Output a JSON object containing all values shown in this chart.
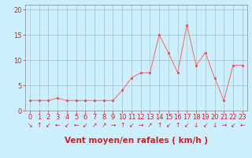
{
  "bg_color": "#cceeff",
  "grid_color": "#aacccc",
  "line_color": "#f07878",
  "marker_color": "#e05555",
  "xlabel": "Vent moyen/en rafales ( km/h )",
  "xlim": [
    -0.5,
    23.5
  ],
  "ylim": [
    0,
    21
  ],
  "yticks": [
    0,
    5,
    10,
    15,
    20
  ],
  "xticks": [
    0,
    1,
    2,
    3,
    4,
    5,
    6,
    7,
    8,
    9,
    10,
    11,
    12,
    13,
    14,
    15,
    16,
    17,
    18,
    19,
    20,
    21,
    22,
    23
  ],
  "x_data": [
    0,
    1,
    2,
    3,
    4,
    5,
    6,
    7,
    8,
    9,
    10,
    11,
    12,
    13,
    14,
    15,
    16,
    17,
    18,
    19,
    20,
    21,
    22,
    23
  ],
  "y_data": [
    2.0,
    2.0,
    2.0,
    2.5,
    2.0,
    2.0,
    2.0,
    2.0,
    2.0,
    2.0,
    4.0,
    6.5,
    7.5,
    7.5,
    15.0,
    11.5,
    7.5,
    17.0,
    9.0,
    11.5,
    6.5,
    2.0,
    9.0,
    9.0
  ],
  "wind_chars": [
    "↘",
    "↑",
    "↙",
    "←",
    "↙",
    "←",
    "↙",
    "↗",
    "↗",
    "→",
    "↑",
    "↙",
    "→",
    "↗",
    "↑",
    "↙",
    "↑",
    "↙",
    "↓",
    "↙",
    "↓",
    "→",
    "↙",
    "←"
  ],
  "xlabel_fontsize": 7.5,
  "tick_fontsize": 6,
  "xlabel_color": "#cc2222",
  "tick_color": "#cc2222",
  "arrow_fontsize": 5.5,
  "spine_color": "#888888"
}
